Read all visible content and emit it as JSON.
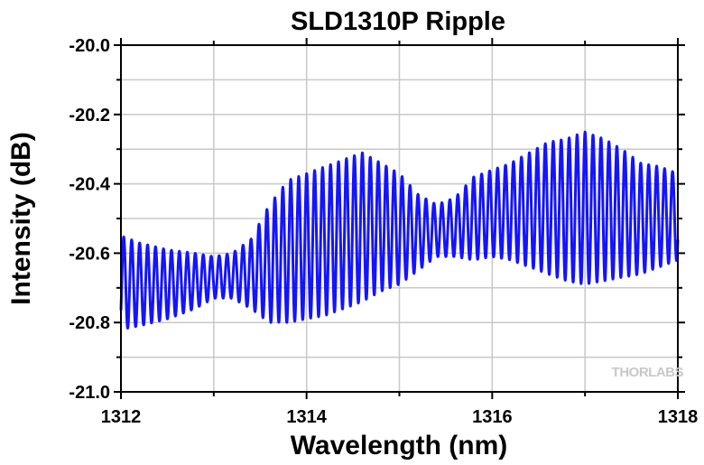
{
  "chart_data": {
    "type": "line",
    "title": "SLD1310P Ripple",
    "xlabel": "Wavelength (nm)",
    "ylabel": "Intensity (dB)",
    "xlim": [
      1312,
      1318
    ],
    "ylim": [
      -21.0,
      -20.0
    ],
    "x_ticks": [
      "1312",
      "1314",
      "1316",
      "1318"
    ],
    "y_ticks": [
      "-20.0",
      "-20.2",
      "-20.4",
      "-20.6",
      "-20.8",
      "-21.0"
    ],
    "grid": true,
    "series_color": "#1414ff",
    "ripple_period_nm": 0.0857,
    "series": [
      {
        "x": [
          1312.0,
          1312.2,
          1312.5,
          1312.8,
          1313.0,
          1313.2,
          1313.4,
          1313.6,
          1313.8,
          1314.0,
          1314.2,
          1314.4,
          1314.6,
          1314.8,
          1315.0,
          1315.2,
          1315.4,
          1315.6,
          1315.8,
          1316.0,
          1316.2,
          1316.4,
          1316.6,
          1316.8,
          1317.0,
          1317.2,
          1317.4,
          1317.6,
          1317.8,
          1318.0
        ],
        "envelope_upper": [
          -20.55,
          -20.57,
          -20.59,
          -20.6,
          -20.61,
          -20.6,
          -20.56,
          -20.46,
          -20.39,
          -20.37,
          -20.35,
          -20.33,
          -20.31,
          -20.34,
          -20.37,
          -20.43,
          -20.46,
          -20.44,
          -20.38,
          -20.36,
          -20.34,
          -20.31,
          -20.28,
          -20.27,
          -20.25,
          -20.27,
          -20.3,
          -20.34,
          -20.35,
          -20.37
        ],
        "envelope_lower": [
          -20.82,
          -20.81,
          -20.79,
          -20.76,
          -20.73,
          -20.73,
          -20.76,
          -20.8,
          -20.8,
          -20.79,
          -20.78,
          -20.76,
          -20.74,
          -20.71,
          -20.69,
          -20.65,
          -20.61,
          -20.61,
          -20.62,
          -20.61,
          -20.62,
          -20.64,
          -20.66,
          -20.68,
          -20.69,
          -20.68,
          -20.67,
          -20.66,
          -20.64,
          -20.62
        ]
      }
    ]
  },
  "watermark": "THORLABS"
}
